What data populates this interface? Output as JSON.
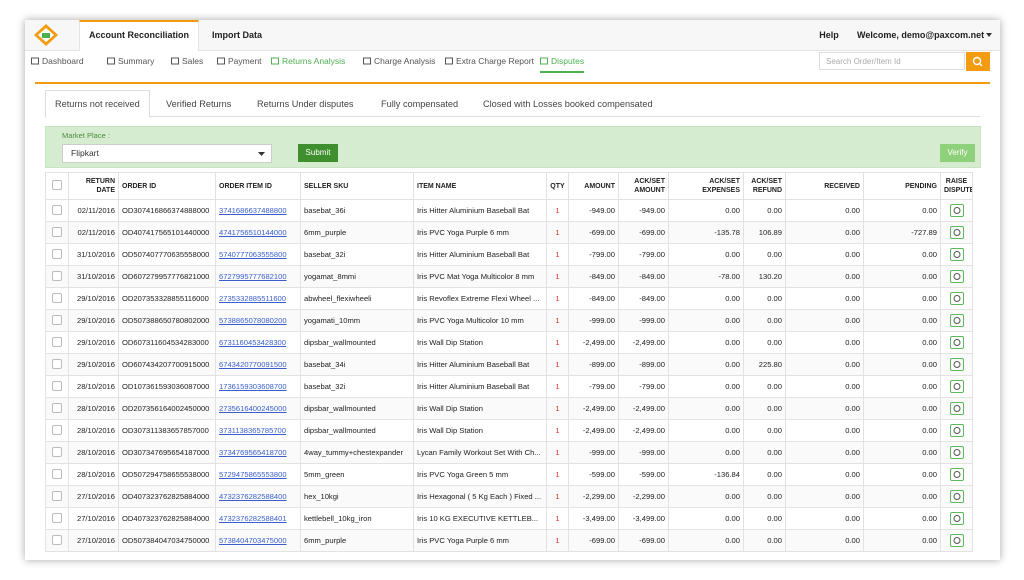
{
  "header": {
    "tabs": [
      "Account Reconciliation",
      "Import Data"
    ],
    "help": "Help",
    "welcome": "Welcome, demo@paxcom.net"
  },
  "nav": {
    "items": [
      "Dashboard",
      "Summary",
      "Sales",
      "Payment",
      "Returns Analysis",
      "Charge Analysis",
      "Extra Charge Report",
      "Disputes"
    ],
    "search_placeholder": "Search Order/Item Id"
  },
  "subtabs": [
    "Returns not received",
    "Verified Returns",
    "Returns Under disputes",
    "Fully compensated",
    "Closed with Losses booked compensated"
  ],
  "filter": {
    "label": "Market Place :",
    "selected": "Flipkart",
    "submit": "Submit",
    "verify": "Verify"
  },
  "table": {
    "columns": [
      "RETURN DATE",
      "ORDER ID",
      "ORDER ITEM ID",
      "SELLER SKU",
      "ITEM NAME",
      "QTY",
      "AMOUNT",
      "ACK/SET AMOUNT",
      "ACK/SET EXPENSES",
      "ACK/SET REFUND",
      "RECEIVED",
      "PENDING",
      "RAISE DISPUTE"
    ],
    "rows": [
      [
        "02/11/2016",
        "OD307416866374888000",
        "3741686637488800",
        "basebat_36i",
        "Iris Hitter Aluminium Baseball Bat",
        "1",
        "-949.00",
        "-949.00",
        "0.00",
        "0.00",
        "0.00",
        "0.00"
      ],
      [
        "02/11/2016",
        "OD407417565101440000",
        "4741756510144000",
        "6mm_purple",
        "Iris PVC Yoga Purple 6 mm",
        "1",
        "-699.00",
        "-699.00",
        "-135.78",
        "106.89",
        "0.00",
        "-727.89"
      ],
      [
        "31/10/2016",
        "OD507407770635558000",
        "5740777063555800",
        "basebat_32i",
        "Iris Hitter Aluminium Baseball Bat",
        "1",
        "-799.00",
        "-799.00",
        "0.00",
        "0.00",
        "0.00",
        "0.00"
      ],
      [
        "31/10/2016",
        "OD607279957776821000",
        "6727995777682100",
        "yogamat_8mmi",
        "Iris PVC Mat Yoga Multicolor 8 mm",
        "1",
        "-849.00",
        "-849.00",
        "-78.00",
        "130.20",
        "0.00",
        "0.00"
      ],
      [
        "29/10/2016",
        "OD207353328855116000",
        "2735332885511600",
        "abwheel_flexiwheeli",
        "Iris Revoflex Extreme Flexi Wheel ...",
        "1",
        "-849.00",
        "-849.00",
        "0.00",
        "0.00",
        "0.00",
        "0.00"
      ],
      [
        "29/10/2016",
        "OD507388650780802000",
        "5738865078080200",
        "yogamati_10mm",
        "Iris PVC Yoga Multicolor 10 mm",
        "1",
        "-999.00",
        "-999.00",
        "0.00",
        "0.00",
        "0.00",
        "0.00"
      ],
      [
        "29/10/2016",
        "OD607311604534283000",
        "6731160453428300",
        "dipsbar_wallmounted",
        "Iris Wall Dip Station",
        "1",
        "-2,499.00",
        "-2,499.00",
        "0.00",
        "0.00",
        "0.00",
        "0.00"
      ],
      [
        "29/10/2016",
        "OD607434207700915000",
        "6743420770091500",
        "basebat_34i",
        "Iris Hitter Aluminium Baseball Bat",
        "1",
        "-899.00",
        "-899.00",
        "0.00",
        "225.80",
        "0.00",
        "0.00"
      ],
      [
        "28/10/2016",
        "OD107361593036087000",
        "1736159303608700",
        "basebat_32i",
        "Iris Hitter Aluminium Baseball Bat",
        "1",
        "-799.00",
        "-799.00",
        "0.00",
        "0.00",
        "0.00",
        "0.00"
      ],
      [
        "28/10/2016",
        "OD207356164002450000",
        "2735616400245000",
        "dipsbar_wallmounted",
        "Iris Wall Dip Station",
        "1",
        "-2,499.00",
        "-2,499.00",
        "0.00",
        "0.00",
        "0.00",
        "0.00"
      ],
      [
        "28/10/2016",
        "OD307311383657857000",
        "3731138365785700",
        "dipsbar_wallmounted",
        "Iris Wall Dip Station",
        "1",
        "-2,499.00",
        "-2,499.00",
        "0.00",
        "0.00",
        "0.00",
        "0.00"
      ],
      [
        "28/10/2016",
        "OD307347695654187000",
        "3734769565418700",
        "4way_tummy+chestexpander",
        "Lycan Family Workout Set With Ch...",
        "1",
        "-999.00",
        "-999.00",
        "0.00",
        "0.00",
        "0.00",
        "0.00"
      ],
      [
        "28/10/2016",
        "OD507294758655538000",
        "5729475865553800",
        "5mm_green",
        "Iris PVC Yoga Green 5 mm",
        "1",
        "-599.00",
        "-599.00",
        "-136.84",
        "0.00",
        "0.00",
        "0.00"
      ],
      [
        "27/10/2016",
        "OD407323762825884000",
        "4732376282588400",
        "hex_10kgi",
        "Iris Hexagonal ( 5 Kg Each ) Fixed ...",
        "1",
        "-2,299.00",
        "-2,299.00",
        "0.00",
        "0.00",
        "0.00",
        "0.00"
      ],
      [
        "27/10/2016",
        "OD407323762825884000",
        "4732376282588401",
        "kettlebell_10kg_iron",
        "Iris 10 KG EXECUTIVE KETTLEB...",
        "1",
        "-3,499.00",
        "-3,499.00",
        "0.00",
        "0.00",
        "0.00",
        "0.00"
      ],
      [
        "27/10/2016",
        "OD507384047034750000",
        "5738404703475000",
        "6mm_purple",
        "Iris PVC Yoga Purple 6 mm",
        "1",
        "-699.00",
        "-699.00",
        "0.00",
        "0.00",
        "0.00",
        "0.00"
      ]
    ]
  }
}
